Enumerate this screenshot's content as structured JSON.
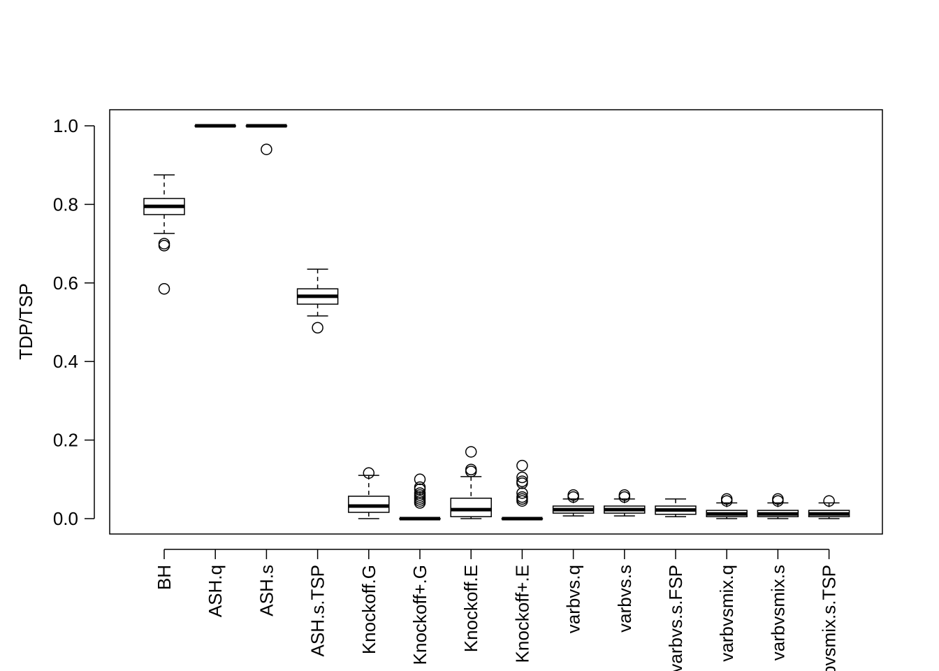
{
  "chart_data": {
    "type": "boxplot",
    "title": "",
    "xlabel": "",
    "ylabel": "TDP/TSP",
    "ylim": [
      0,
      1.0
    ],
    "yticks": [
      "0.0",
      "0.2",
      "0.4",
      "0.6",
      "0.8",
      "1.0"
    ],
    "ytick_values": [
      0,
      0.2,
      0.4,
      0.6,
      0.8,
      1.0
    ],
    "categories": [
      "BH",
      "ASH.q",
      "ASH.s",
      "ASH.s.TSP",
      "Knockoff.G",
      "Knockoff+.G",
      "Knockoff.E",
      "Knockoff+.E",
      "varbvs.q",
      "varbvs.s",
      "varbvs.s.FSP",
      "varbvsmix.q",
      "varbvsmix.s",
      "varbvsmix.s.TSP"
    ],
    "boxes": [
      {
        "min": 0.726,
        "q1": 0.774,
        "median": 0.795,
        "q3": 0.815,
        "max": 0.875,
        "outliers": [
          0.7,
          0.695,
          0.585
        ]
      },
      {
        "min": 1.0,
        "q1": 1.0,
        "median": 1.0,
        "q3": 1.0,
        "max": 1.0,
        "outliers": []
      },
      {
        "min": 1.0,
        "q1": 1.0,
        "median": 1.0,
        "q3": 1.0,
        "max": 1.0,
        "outliers": [
          0.94
        ]
      },
      {
        "min": 0.516,
        "q1": 0.546,
        "median": 0.566,
        "q3": 0.585,
        "max": 0.635,
        "outliers": [
          0.486
        ]
      },
      {
        "min": 0.0,
        "q1": 0.016,
        "median": 0.032,
        "q3": 0.057,
        "max": 0.11,
        "outliers": [
          0.116
        ]
      },
      {
        "min": 0.0,
        "q1": 0.0,
        "median": 0.0,
        "q3": 0.0,
        "max": 0.0,
        "outliers": [
          0.1,
          0.08,
          0.075,
          0.065,
          0.06,
          0.055,
          0.05,
          0.045,
          0.04
        ]
      },
      {
        "min": 0.0,
        "q1": 0.005,
        "median": 0.023,
        "q3": 0.052,
        "max": 0.107,
        "outliers": [
          0.12,
          0.125,
          0.17
        ]
      },
      {
        "min": 0.0,
        "q1": 0.0,
        "median": 0.0,
        "q3": 0.0,
        "max": 0.0,
        "outliers": [
          0.135,
          0.105,
          0.095,
          0.09,
          0.065,
          0.055,
          0.05,
          0.045
        ]
      },
      {
        "min": 0.007,
        "q1": 0.014,
        "median": 0.023,
        "q3": 0.032,
        "max": 0.05,
        "outliers": [
          0.055,
          0.06
        ]
      },
      {
        "min": 0.007,
        "q1": 0.014,
        "median": 0.023,
        "q3": 0.032,
        "max": 0.05,
        "outliers": [
          0.055,
          0.06
        ]
      },
      {
        "min": 0.005,
        "q1": 0.011,
        "median": 0.022,
        "q3": 0.032,
        "max": 0.05,
        "outliers": []
      },
      {
        "min": 0.0,
        "q1": 0.005,
        "median": 0.012,
        "q3": 0.021,
        "max": 0.04,
        "outliers": [
          0.045,
          0.05
        ]
      },
      {
        "min": 0.0,
        "q1": 0.005,
        "median": 0.012,
        "q3": 0.021,
        "max": 0.04,
        "outliers": [
          0.045,
          0.05
        ]
      },
      {
        "min": 0.0,
        "q1": 0.005,
        "median": 0.012,
        "q3": 0.021,
        "max": 0.04,
        "outliers": [
          0.045
        ]
      }
    ],
    "grid": false,
    "legend": "none"
  }
}
